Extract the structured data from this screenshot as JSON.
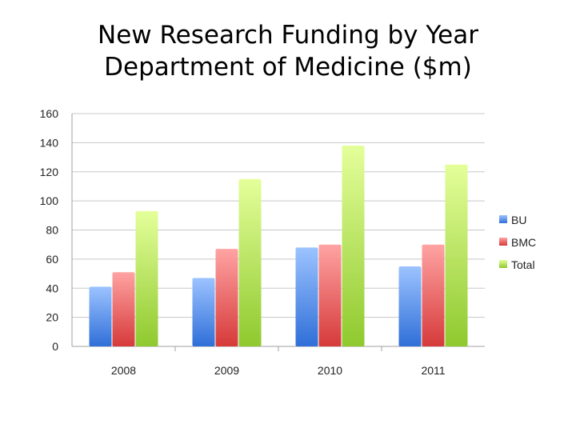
{
  "title": {
    "line1": "New Research Funding by Year",
    "line2": "Department of Medicine ($m)"
  },
  "chart_data": {
    "type": "bar",
    "title": "New Research Funding by Year Department of Medicine ($m)",
    "categories": [
      "2008",
      "2009",
      "2010",
      "2011"
    ],
    "series": [
      {
        "name": "BU",
        "values": [
          41,
          47,
          68,
          55
        ],
        "color_top": "#9cc3ff",
        "color_bottom": "#2f6fd8"
      },
      {
        "name": "BMC",
        "values": [
          51,
          67,
          70,
          70
        ],
        "color_top": "#ffa3a3",
        "color_bottom": "#d63a3a"
      },
      {
        "name": "Total",
        "values": [
          93,
          115,
          138,
          125
        ],
        "color_top": "#e4ff9a",
        "color_bottom": "#8fc92e"
      }
    ],
    "ylim": [
      0,
      160
    ],
    "yticks": [
      0,
      20,
      40,
      60,
      80,
      100,
      120,
      140,
      160
    ],
    "xlabel": "",
    "ylabel": "",
    "grid": true,
    "legend": "right"
  }
}
